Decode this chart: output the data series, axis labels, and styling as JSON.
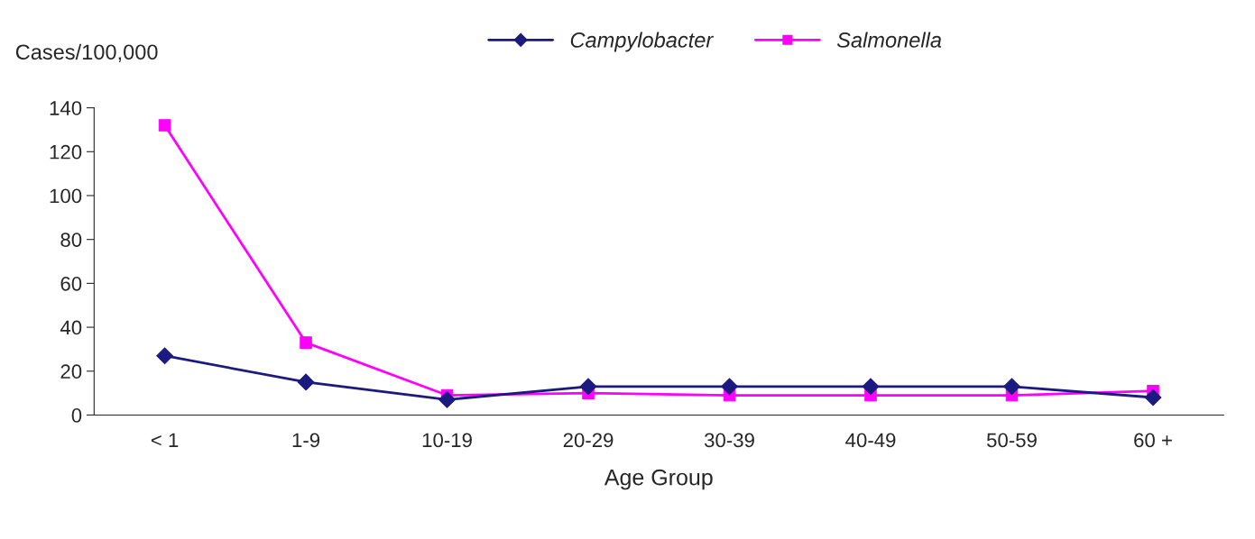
{
  "chart_data": {
    "type": "line",
    "xlabel": "Age Group",
    "ylabel": "Cases/100,000",
    "categories": [
      "< 1",
      "1-9",
      "10-19",
      "20-29",
      "30-39",
      "40-49",
      "50-59",
      "60 +"
    ],
    "series": [
      {
        "name": "Campylobacter",
        "color": "#1a1a80",
        "marker": "diamond",
        "values": [
          27,
          15,
          7,
          13,
          13,
          13,
          13,
          8
        ]
      },
      {
        "name": "Salmonella",
        "color": "#ff00ff",
        "marker": "square",
        "values": [
          132,
          33,
          9,
          10,
          9,
          9,
          9,
          11
        ]
      }
    ],
    "ylim": [
      0,
      140
    ],
    "yticks": [
      0,
      20,
      40,
      60,
      80,
      100,
      120,
      140
    ],
    "grid": false,
    "legend": "top"
  }
}
